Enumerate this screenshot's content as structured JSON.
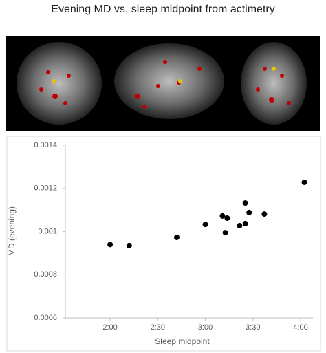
{
  "chart_data": {
    "type": "scatter",
    "title": "Evening MD vs. sleep midpoint from actimetry",
    "x_label": "Sleep midpoint",
    "y_label": "MD (evening)",
    "x": [
      2.0,
      2.2,
      2.7,
      3.0,
      3.18,
      3.23,
      3.21,
      3.36,
      3.42,
      3.42,
      3.46,
      3.62,
      4.04
    ],
    "series": [
      {
        "name": "MD (evening)",
        "color": "#000000",
        "values": [
          0.00094,
          0.000935,
          0.000973,
          0.001033,
          0.001072,
          0.001062,
          0.000995,
          0.001027,
          0.001132,
          0.001037,
          0.001088,
          0.001081,
          0.001228
        ]
      }
    ],
    "xlim": [
      1.53,
      4.13
    ],
    "xticks": [
      {
        "value": 2,
        "label": "2:00"
      },
      {
        "value": 2.5,
        "label": "2:30"
      },
      {
        "value": 3,
        "label": "3:00"
      },
      {
        "value": 3.5,
        "label": "3:30"
      },
      {
        "value": 4,
        "label": "4:00"
      }
    ],
    "ylim": [
      0.0006,
      0.0014
    ],
    "yticks": [
      0.0006,
      0.0008,
      0.001,
      0.0012,
      0.0014
    ]
  }
}
